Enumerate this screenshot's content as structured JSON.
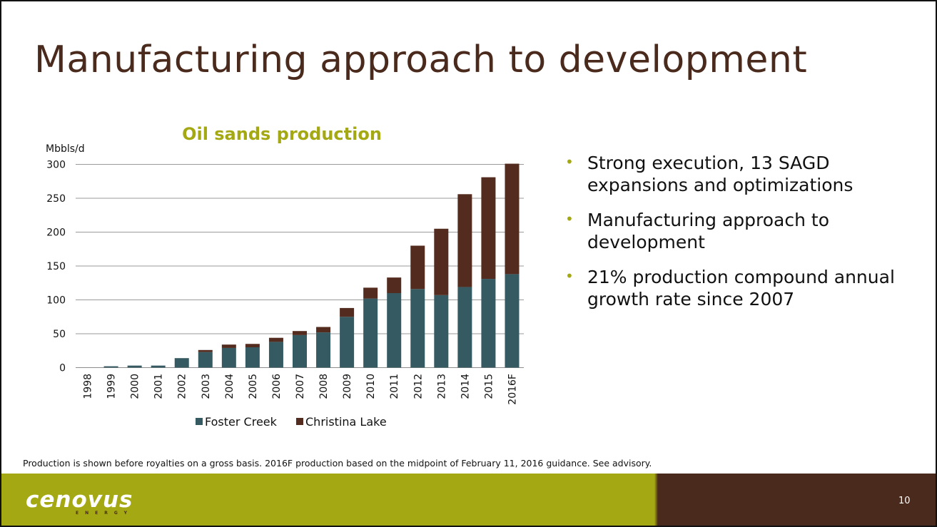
{
  "slide": {
    "title": "Manufacturing approach to development",
    "footnote": "Production is shown before royalties on a gross basis. 2016F production based on the midpoint of February 11, 2016 guidance. See advisory.",
    "page_number": "10",
    "logo": {
      "main": "cenovus",
      "sub": "ENERGY"
    }
  },
  "bullets": [
    "Strong execution, 13 SAGD expansions and optimizations",
    "Manufacturing approach to development",
    "21% production compound annual growth rate since 2007"
  ],
  "colors": {
    "title": "#4a2a1c",
    "chart_title": "#a4a812",
    "foster_creek": "#365a62",
    "christina_lake": "#542c1f",
    "footer_green": "#a4a812",
    "footer_brown": "#4a2a1c",
    "bullet": "#a4a812"
  },
  "chart_data": {
    "type": "bar",
    "stacked": true,
    "title": "Oil sands production",
    "ylabel": "Mbbls/d",
    "xlabel": "",
    "ylim": [
      0,
      300
    ],
    "yticks": [
      0,
      50,
      100,
      150,
      200,
      250,
      300
    ],
    "grid": true,
    "legend_position": "bottom",
    "categories": [
      "1998",
      "1999",
      "2000",
      "2001",
      "2002",
      "2003",
      "2004",
      "2005",
      "2006",
      "2007",
      "2008",
      "2009",
      "2010",
      "2011",
      "2012",
      "2013",
      "2014",
      "2015",
      "2016F"
    ],
    "series": [
      {
        "name": "Foster Creek",
        "values": [
          0,
          2,
          3,
          3,
          14,
          23,
          29,
          30,
          38,
          48,
          52,
          75,
          102,
          110,
          116,
          107,
          119,
          131,
          138
        ]
      },
      {
        "name": "Christina Lake",
        "values": [
          0,
          0,
          0,
          0,
          0,
          3,
          5,
          5,
          6,
          6,
          8,
          13,
          16,
          23,
          64,
          98,
          137,
          150,
          163
        ]
      }
    ]
  }
}
